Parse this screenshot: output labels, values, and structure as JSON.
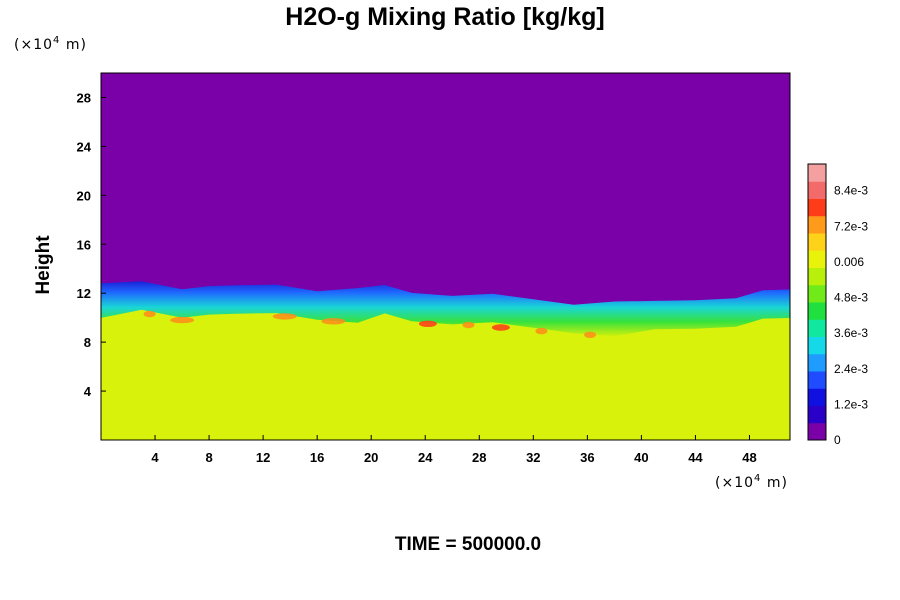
{
  "chart_data": {
    "type": "heatmap",
    "title": "H2O-g Mixing Ratio [kg/kg]",
    "ylabel": "Height",
    "xlabel": "",
    "x_unit_prefix": "(×10",
    "x_unit_exp": "4",
    "x_unit_suffix": " m)",
    "y_unit_prefix": "(×10",
    "y_unit_exp": "4",
    "y_unit_suffix": " m)",
    "xlim": [
      0,
      51
    ],
    "ylim": [
      0,
      30
    ],
    "x_ticks": [
      "4",
      "8",
      "12",
      "16",
      "20",
      "24",
      "28",
      "32",
      "36",
      "40",
      "44",
      "48"
    ],
    "y_ticks": [
      "4",
      "8",
      "12",
      "16",
      "20",
      "24",
      "28"
    ],
    "x_tick_values": [
      4,
      8,
      12,
      16,
      20,
      24,
      28,
      32,
      36,
      40,
      44,
      48
    ],
    "y_tick_values": [
      4,
      8,
      12,
      16,
      20,
      24,
      28
    ],
    "colorbar": {
      "range": [
        0,
        0.0093
      ],
      "tick_labels": [
        "0",
        "1.2e-3",
        "2.4e-3",
        "3.6e-3",
        "4.8e-3",
        "0.006",
        "7.2e-3",
        "8.4e-3"
      ],
      "tick_values": [
        0,
        0.0012,
        0.0024,
        0.0036,
        0.0048,
        0.006,
        0.0072,
        0.0084
      ]
    },
    "field_description_values": {
      "upper_layer_value": 0,
      "lower_layer_value": 0.0058,
      "moist_layer_top_height": [
        [
          0,
          12.6
        ],
        [
          3,
          12.9
        ],
        [
          6,
          12.4
        ],
        [
          8,
          12.8
        ],
        [
          10,
          12.5
        ],
        [
          13,
          12.7
        ],
        [
          16,
          12.3
        ],
        [
          19,
          12.2
        ],
        [
          21,
          12.6
        ],
        [
          23,
          12.1
        ],
        [
          26,
          12.0
        ],
        [
          29,
          11.8
        ],
        [
          32,
          11.5
        ],
        [
          35,
          11.2
        ],
        [
          38,
          11.1
        ],
        [
          41,
          11.3
        ],
        [
          44,
          11.5
        ],
        [
          47,
          11.8
        ],
        [
          49,
          12.1
        ],
        [
          51,
          12.3
        ]
      ]
    },
    "time_label": "TIME = 500000.0"
  }
}
